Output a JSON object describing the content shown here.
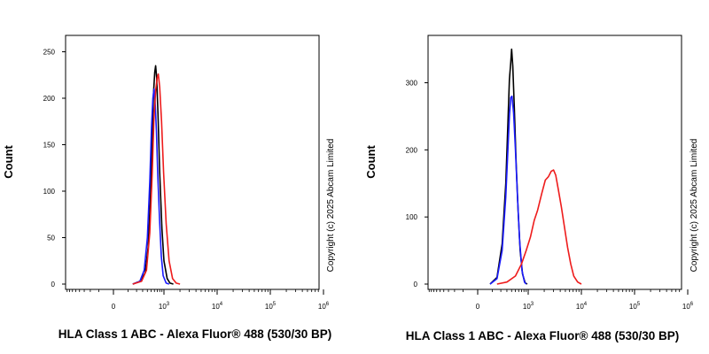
{
  "chart_data": [
    {
      "type": "line",
      "title": "",
      "xlabel": "HLA Class 1 ABC - Alexa Fluor® 488 (530/30 BP)",
      "ylabel": "Count",
      "copyright": "Copyright (c) 2025 Abcam Limited",
      "x_scale": "biexponential",
      "ylim": [
        0,
        260
      ],
      "yticks": [
        "0",
        "50",
        "100",
        "150",
        "200",
        "250"
      ],
      "ytick_values": [
        0,
        50,
        100,
        150,
        200,
        250
      ],
      "xticks": [
        {
          "base": "0",
          "exp": "",
          "value": 0
        },
        {
          "base": "10",
          "exp": "3",
          "value": 1000
        },
        {
          "base": "10",
          "exp": "4",
          "value": 10000
        },
        {
          "base": "10",
          "exp": "5",
          "value": 100000
        },
        {
          "base": "10",
          "exp": "6",
          "value": 1000000
        }
      ],
      "series": [
        {
          "color": "#000000",
          "points": [
            [
              150,
              0
            ],
            [
              250,
              3
            ],
            [
              350,
              12
            ],
            [
              420,
              40
            ],
            [
              480,
              95
            ],
            [
              530,
              160
            ],
            [
              570,
              205
            ],
            [
              610,
              228
            ],
            [
              640,
              235
            ],
            [
              680,
              222
            ],
            [
              730,
              182
            ],
            [
              800,
              120
            ],
            [
              900,
              60
            ],
            [
              1000,
              25
            ],
            [
              1150,
              6
            ],
            [
              1300,
              1
            ],
            [
              1500,
              0
            ]
          ]
        },
        {
          "color": "#1a1aff",
          "points": [
            [
              150,
              0
            ],
            [
              250,
              3
            ],
            [
              330,
              15
            ],
            [
              400,
              50
            ],
            [
              460,
              110
            ],
            [
              510,
              170
            ],
            [
              550,
              200
            ],
            [
              590,
              210
            ],
            [
              620,
              198
            ],
            [
              670,
              165
            ],
            [
              720,
              118
            ],
            [
              790,
              70
            ],
            [
              870,
              30
            ],
            [
              960,
              9
            ],
            [
              1100,
              1
            ],
            [
              1250,
              0
            ]
          ]
        },
        {
          "color": "#ee1c1c",
          "points": [
            [
              150,
              0
            ],
            [
              280,
              3
            ],
            [
              380,
              15
            ],
            [
              460,
              55
            ],
            [
              530,
              120
            ],
            [
              580,
              175
            ],
            [
              640,
              208
            ],
            [
              700,
              222
            ],
            [
              740,
              226
            ],
            [
              800,
              212
            ],
            [
              880,
              175
            ],
            [
              980,
              120
            ],
            [
              1100,
              65
            ],
            [
              1250,
              25
            ],
            [
              1450,
              6
            ],
            [
              1700,
              1
            ],
            [
              2000,
              0
            ]
          ]
        }
      ]
    },
    {
      "type": "line",
      "title": "",
      "xlabel": "HLA Class 1 ABC - Alexa Fluor® 488 (530/30 BP)",
      "ylabel": "Count",
      "copyright": "Copyright (c) 2025 Abcam Limited",
      "x_scale": "biexponential",
      "ylim": [
        0,
        360
      ],
      "yticks": [
        "0",
        "100",
        "200",
        "300"
      ],
      "ytick_values": [
        0,
        100,
        200,
        300
      ],
      "xticks": [
        {
          "base": "0",
          "exp": "",
          "value": 0
        },
        {
          "base": "10",
          "exp": "3",
          "value": 1000
        },
        {
          "base": "10",
          "exp": "4",
          "value": 10000
        },
        {
          "base": "10",
          "exp": "5",
          "value": 100000
        },
        {
          "base": "10",
          "exp": "6",
          "value": 1000000
        }
      ],
      "series": [
        {
          "color": "#000000",
          "points": [
            [
              80,
              0
            ],
            [
              150,
              10
            ],
            [
              220,
              60
            ],
            [
              280,
              150
            ],
            [
              320,
              240
            ],
            [
              350,
              305
            ],
            [
              380,
              330
            ],
            [
              400,
              350
            ],
            [
              430,
              325
            ],
            [
              470,
              260
            ],
            [
              520,
              180
            ],
            [
              580,
              110
            ],
            [
              650,
              50
            ],
            [
              740,
              15
            ],
            [
              850,
              2
            ],
            [
              950,
              0
            ]
          ]
        },
        {
          "color": "#1a1aff",
          "points": [
            [
              80,
              0
            ],
            [
              150,
              8
            ],
            [
              220,
              50
            ],
            [
              280,
              130
            ],
            [
              320,
              200
            ],
            [
              350,
              250
            ],
            [
              380,
              278
            ],
            [
              410,
              280
            ],
            [
              450,
              255
            ],
            [
              500,
              200
            ],
            [
              560,
              130
            ],
            [
              630,
              65
            ],
            [
              720,
              20
            ],
            [
              820,
              3
            ],
            [
              900,
              0
            ]
          ]
        },
        {
          "color": "#ee1c1c",
          "points": [
            [
              150,
              0
            ],
            [
              300,
              3
            ],
            [
              500,
              12
            ],
            [
              700,
              30
            ],
            [
              900,
              50
            ],
            [
              1100,
              70
            ],
            [
              1300,
              95
            ],
            [
              1500,
              110
            ],
            [
              1800,
              135
            ],
            [
              2100,
              155
            ],
            [
              2400,
              160
            ],
            [
              2700,
              168
            ],
            [
              3000,
              170
            ],
            [
              3300,
              162
            ],
            [
              3700,
              140
            ],
            [
              4200,
              115
            ],
            [
              4800,
              85
            ],
            [
              5500,
              55
            ],
            [
              6300,
              30
            ],
            [
              7200,
              12
            ],
            [
              8500,
              3
            ],
            [
              10000,
              0
            ]
          ]
        }
      ]
    }
  ]
}
